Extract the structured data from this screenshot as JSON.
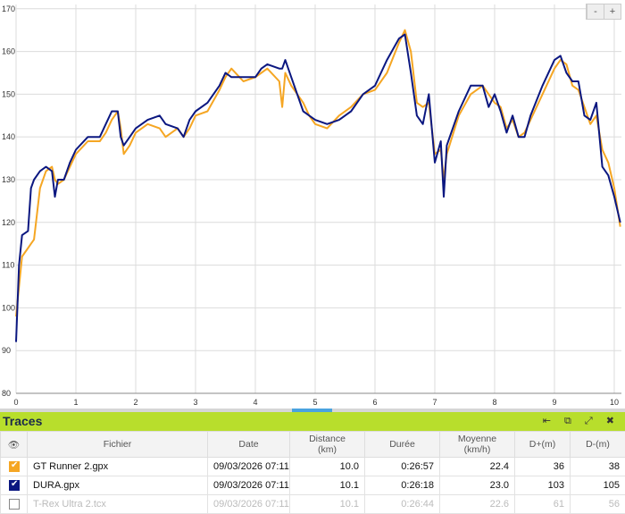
{
  "chart_data": {
    "type": "line",
    "x": [
      0,
      0.05,
      0.1,
      0.2,
      0.25,
      0.3,
      0.4,
      0.5,
      0.6,
      0.65,
      0.7,
      0.8,
      0.9,
      1.0,
      1.2,
      1.4,
      1.5,
      1.6,
      1.7,
      1.75,
      1.8,
      1.9,
      2.0,
      2.2,
      2.4,
      2.5,
      2.7,
      2.8,
      2.9,
      3.0,
      3.2,
      3.4,
      3.5,
      3.6,
      3.8,
      4.0,
      4.1,
      4.2,
      4.4,
      4.45,
      4.5,
      4.6,
      4.8,
      4.9,
      5.0,
      5.2,
      5.4,
      5.6,
      5.8,
      6.0,
      6.2,
      6.4,
      6.5,
      6.6,
      6.7,
      6.8,
      6.9,
      7.0,
      7.1,
      7.15,
      7.2,
      7.4,
      7.6,
      7.8,
      7.9,
      8.0,
      8.1,
      8.2,
      8.3,
      8.4,
      8.5,
      8.6,
      8.8,
      9.0,
      9.1,
      9.2,
      9.3,
      9.4,
      9.5,
      9.6,
      9.7,
      9.8,
      9.9,
      10.0,
      10.1
    ],
    "series": [
      {
        "name": "GT Runner 2.gpx",
        "color": "#f5a623",
        "values": [
          98,
          105,
          112,
          114,
          115,
          116,
          128,
          132,
          133,
          130,
          129,
          130,
          133,
          136,
          139,
          139,
          141,
          144,
          146,
          142,
          136,
          138,
          141,
          143,
          142,
          140,
          142,
          140,
          142,
          145,
          146,
          151,
          154,
          156,
          153,
          154,
          155,
          156,
          153,
          147,
          155,
          152,
          148,
          145,
          143,
          142,
          145,
          147,
          150,
          151,
          155,
          162,
          165,
          160,
          148,
          147,
          148,
          136,
          137,
          130,
          136,
          145,
          150,
          152,
          150,
          148,
          147,
          142,
          144,
          140,
          141,
          144,
          150,
          156,
          158,
          157,
          152,
          151,
          147,
          143,
          145,
          137,
          134,
          128,
          119
        ]
      },
      {
        "name": "DURA.gpx",
        "color": "#0b1780",
        "values": [
          92,
          110,
          117,
          118,
          128,
          130,
          132,
          133,
          132,
          126,
          130,
          130,
          134,
          137,
          140,
          140,
          143,
          146,
          146,
          140,
          138,
          140,
          142,
          144,
          145,
          143,
          142,
          140,
          144,
          146,
          148,
          152,
          155,
          154,
          154,
          154,
          156,
          157,
          156,
          156,
          158,
          154,
          146,
          145,
          144,
          143,
          144,
          146,
          150,
          152,
          158,
          163,
          164,
          155,
          145,
          143,
          150,
          134,
          139,
          126,
          138,
          146,
          152,
          152,
          147,
          150,
          146,
          141,
          145,
          140,
          140,
          145,
          152,
          158,
          159,
          155,
          153,
          153,
          145,
          144,
          148,
          133,
          131,
          126,
          120
        ]
      }
    ],
    "xlim": [
      0,
      10.12
    ],
    "ylim": [
      80,
      171
    ],
    "xticks": [
      0,
      1,
      2,
      3,
      4,
      5,
      6,
      7,
      8,
      9,
      10
    ],
    "yticks": [
      80,
      90,
      100,
      110,
      120,
      130,
      140,
      150,
      160,
      170
    ],
    "grid": true
  },
  "zoom_buttons": [
    "-",
    "+"
  ],
  "panel_title": "Traces",
  "table": {
    "columns": [
      "Fichier",
      "Date",
      "Distance\n(km)",
      "Durée",
      "Moyenne\n(km/h)",
      "D+(m)",
      "D-(m)"
    ],
    "rows": [
      [
        "GT Runner 2.gpx",
        "09/03/2026 07:11",
        "10.0",
        "0:26:57",
        "22.4",
        "36",
        "38"
      ],
      [
        "DURA.gpx",
        "09/03/2026 07:11",
        "10.1",
        "0:26:18",
        "23.0",
        "103",
        "105"
      ],
      [
        "T-Rex Ultra 2.tcx",
        "09/03/2026 07:11",
        "10.1",
        "0:26:44",
        "22.6",
        "61",
        "56"
      ]
    ]
  }
}
